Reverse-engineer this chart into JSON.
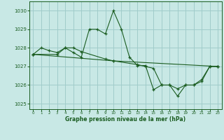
{
  "title": "Graphe pression niveau de la mer (hPa)",
  "bg_color": "#c8e8e5",
  "grid_color": "#a0ccca",
  "line_color": "#1a5c20",
  "x_ticks": [
    0,
    1,
    2,
    3,
    4,
    5,
    6,
    7,
    8,
    9,
    10,
    11,
    12,
    13,
    14,
    15,
    16,
    17,
    18,
    19,
    20,
    21,
    22,
    23
  ],
  "ylim": [
    1024.7,
    1030.5
  ],
  "yticks": [
    1025,
    1026,
    1027,
    1028,
    1029,
    1030
  ],
  "lines": [
    {
      "x": [
        0,
        1,
        2,
        3,
        4,
        5,
        6,
        7,
        8,
        9,
        10,
        11,
        12,
        13,
        14,
        15,
        16,
        17,
        18,
        19,
        20,
        21,
        22,
        23
      ],
      "y": [
        1027.65,
        1028.0,
        1027.85,
        1027.75,
        1028.0,
        1027.75,
        1027.5,
        1029.0,
        1029.0,
        1028.75,
        1030.0,
        1029.0,
        1027.5,
        1027.05,
        1027.05,
        1025.75,
        1026.0,
        1026.0,
        1025.4,
        1026.0,
        1026.0,
        1026.2,
        1027.0,
        1027.0
      ]
    },
    {
      "x": [
        0,
        3,
        4,
        5,
        6,
        9,
        10,
        13,
        14,
        15,
        16,
        17,
        18,
        19,
        20,
        21,
        22,
        23
      ],
      "y": [
        1027.65,
        1027.65,
        1028.0,
        1028.0,
        1027.8,
        1027.4,
        1027.3,
        1027.1,
        1027.0,
        1026.9,
        1026.0,
        1026.0,
        1025.8,
        1026.0,
        1026.0,
        1026.3,
        1027.0,
        1027.0
      ]
    },
    {
      "x": [
        0,
        10,
        23
      ],
      "y": [
        1027.65,
        1027.3,
        1027.0
      ]
    }
  ]
}
